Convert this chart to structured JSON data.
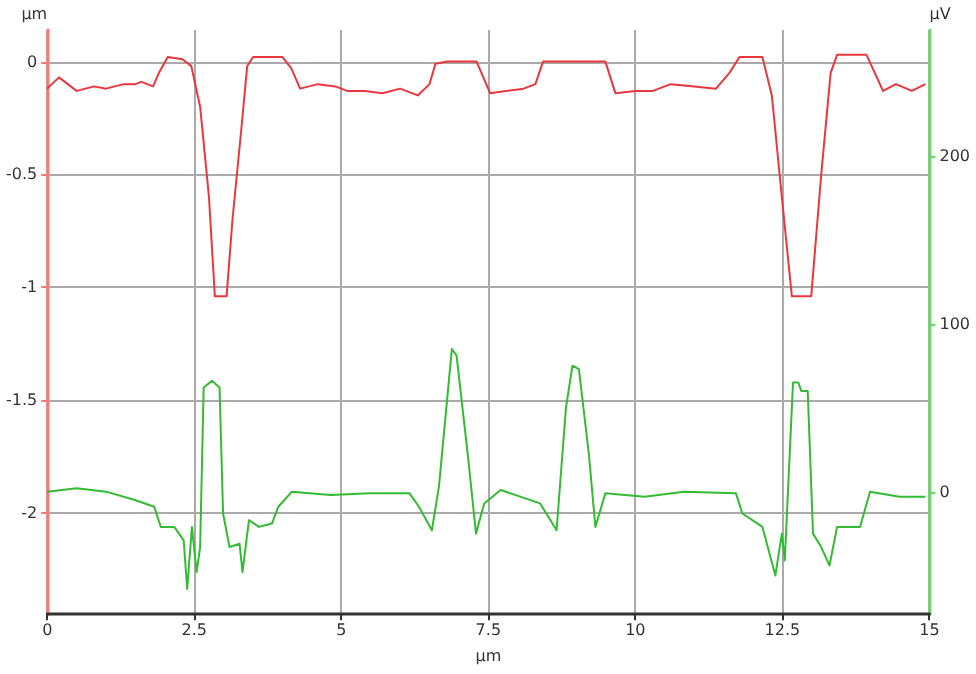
{
  "chart_data": {
    "type": "line",
    "xlabel": "µm",
    "ylabel": "µm",
    "y2label": "µV",
    "xlim": [
      0,
      15
    ],
    "xticks": [
      0,
      {
        "value": 2.5,
        "label": "2.5"
      },
      5,
      {
        "value": 7.5,
        "label": "7.5"
      },
      10,
      {
        "value": 12.5,
        "label": "12.5"
      },
      15
    ],
    "ylim": [
      -2.45,
      0.14
    ],
    "yticks": [
      -2,
      -1.5,
      -1,
      -0.5,
      0
    ],
    "y2lim": [
      -73,
      275
    ],
    "y2ticks": [
      0,
      100,
      200
    ],
    "grid": true,
    "series": [
      {
        "color": "#e8383d",
        "x": [
          0,
          0.2,
          0.5,
          0.8,
          1.0,
          1.3,
          1.5,
          1.6,
          1.8,
          1.9,
          2.05,
          2.3,
          2.45,
          2.6,
          2.75,
          2.85,
          3.05,
          3.15,
          3.3,
          3.4,
          3.5,
          4.0,
          4.15,
          4.3,
          4.6,
          4.9,
          5.1,
          5.4,
          5.7,
          6.0,
          6.3,
          6.5,
          6.6,
          6.8,
          7.3,
          7.53,
          7.8,
          8.1,
          8.3,
          8.43,
          9.49,
          9.66,
          10.0,
          10.3,
          10.6,
          11.0,
          11.37,
          11.6,
          11.77,
          12.16,
          12.32,
          12.49,
          12.66,
          12.99,
          13.16,
          13.32,
          13.43,
          13.93,
          14.21,
          14.43,
          14.7,
          14.93
        ],
        "values": [
          -0.12,
          -0.07,
          -0.13,
          -0.11,
          -0.12,
          -0.1,
          -0.1,
          -0.09,
          -0.11,
          -0.05,
          0.02,
          0.01,
          -0.02,
          -0.2,
          -0.6,
          -1.04,
          -1.04,
          -0.7,
          -0.3,
          -0.02,
          0.02,
          0.02,
          -0.03,
          -0.12,
          -0.1,
          -0.11,
          -0.13,
          -0.13,
          -0.14,
          -0.12,
          -0.15,
          -0.1,
          -0.01,
          0,
          0,
          -0.14,
          -0.13,
          -0.12,
          -0.1,
          0,
          0,
          -0.14,
          -0.13,
          -0.13,
          -0.1,
          -0.11,
          -0.12,
          -0.05,
          0.02,
          0.02,
          -0.15,
          -0.6,
          -1.04,
          -1.04,
          -0.5,
          -0.05,
          0.03,
          0.03,
          -0.13,
          -0.1,
          -0.13,
          -0.1
        ]
      },
      {
        "color": "#33bb33",
        "axis": "y2",
        "x": [
          0,
          0.5,
          1.0,
          1.49,
          1.82,
          1.93,
          2.16,
          2.32,
          2.38,
          2.46,
          2.54,
          2.6,
          2.66,
          2.8,
          2.93,
          2.99,
          3.1,
          3.27,
          3.32,
          3.43,
          3.6,
          3.82,
          3.93,
          4.16,
          4.82,
          5.49,
          6.16,
          6.32,
          6.54,
          6.66,
          6.88,
          6.96,
          7.16,
          7.29,
          7.43,
          7.71,
          8.38,
          8.66,
          8.82,
          8.93,
          9.04,
          9.21,
          9.32,
          9.49,
          10.16,
          10.82,
          11.71,
          11.82,
          12.16,
          12.38,
          12.49,
          12.54,
          12.68,
          12.77,
          12.82,
          12.93,
          13.02,
          13.16,
          13.3,
          13.43,
          13.82,
          13.99,
          14.49,
          14.93
        ],
        "values": [
          0,
          2,
          0,
          -5,
          -9,
          -21,
          -21,
          -29,
          -58,
          -21,
          -48,
          -33,
          62,
          66,
          62,
          -13,
          -33,
          -31,
          -48,
          -17,
          -21,
          -19,
          -9,
          0,
          -2,
          -1,
          -1,
          -9,
          -23,
          3,
          85,
          81,
          19,
          -25,
          -7,
          1,
          -7,
          -23,
          50,
          75,
          73,
          22,
          -21,
          -1,
          -3,
          0,
          -1,
          -13,
          -21,
          -50,
          -25,
          -41,
          65,
          65,
          60,
          60,
          -25,
          -33,
          -44,
          -21,
          -21,
          0,
          -3,
          -3
        ]
      }
    ]
  }
}
